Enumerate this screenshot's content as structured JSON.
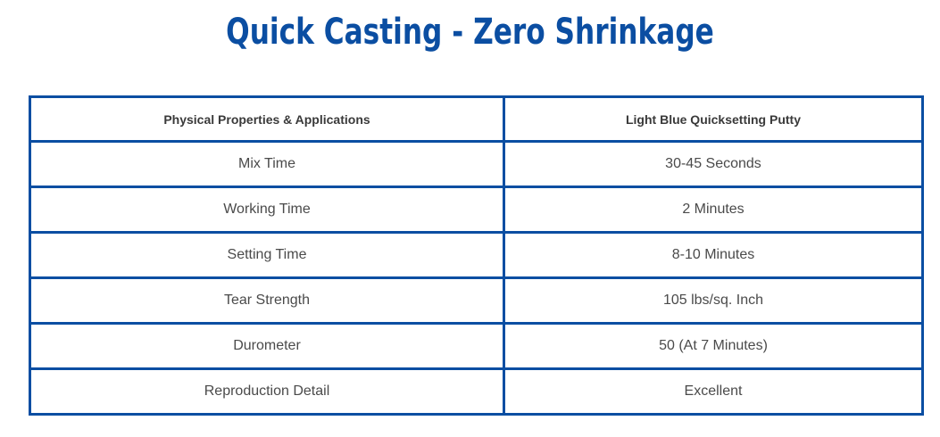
{
  "page": {
    "title": "Quick Casting - Zero Shrinkage"
  },
  "colors": {
    "accent": "#0b4ea2",
    "text": "#4a4a4a"
  },
  "table": {
    "headers": [
      "Physical Properties & Applications",
      "Light Blue Quicksetting Putty"
    ],
    "rows": [
      [
        "Mix Time",
        "30-45 Seconds"
      ],
      [
        "Working Time",
        "2 Minutes"
      ],
      [
        "Setting Time",
        "8-10 Minutes"
      ],
      [
        "Tear Strength",
        "105 lbs/sq. Inch"
      ],
      [
        "Durometer",
        "50 (At 7 Minutes)"
      ],
      [
        "Reproduction Detail",
        "Excellent"
      ]
    ]
  }
}
